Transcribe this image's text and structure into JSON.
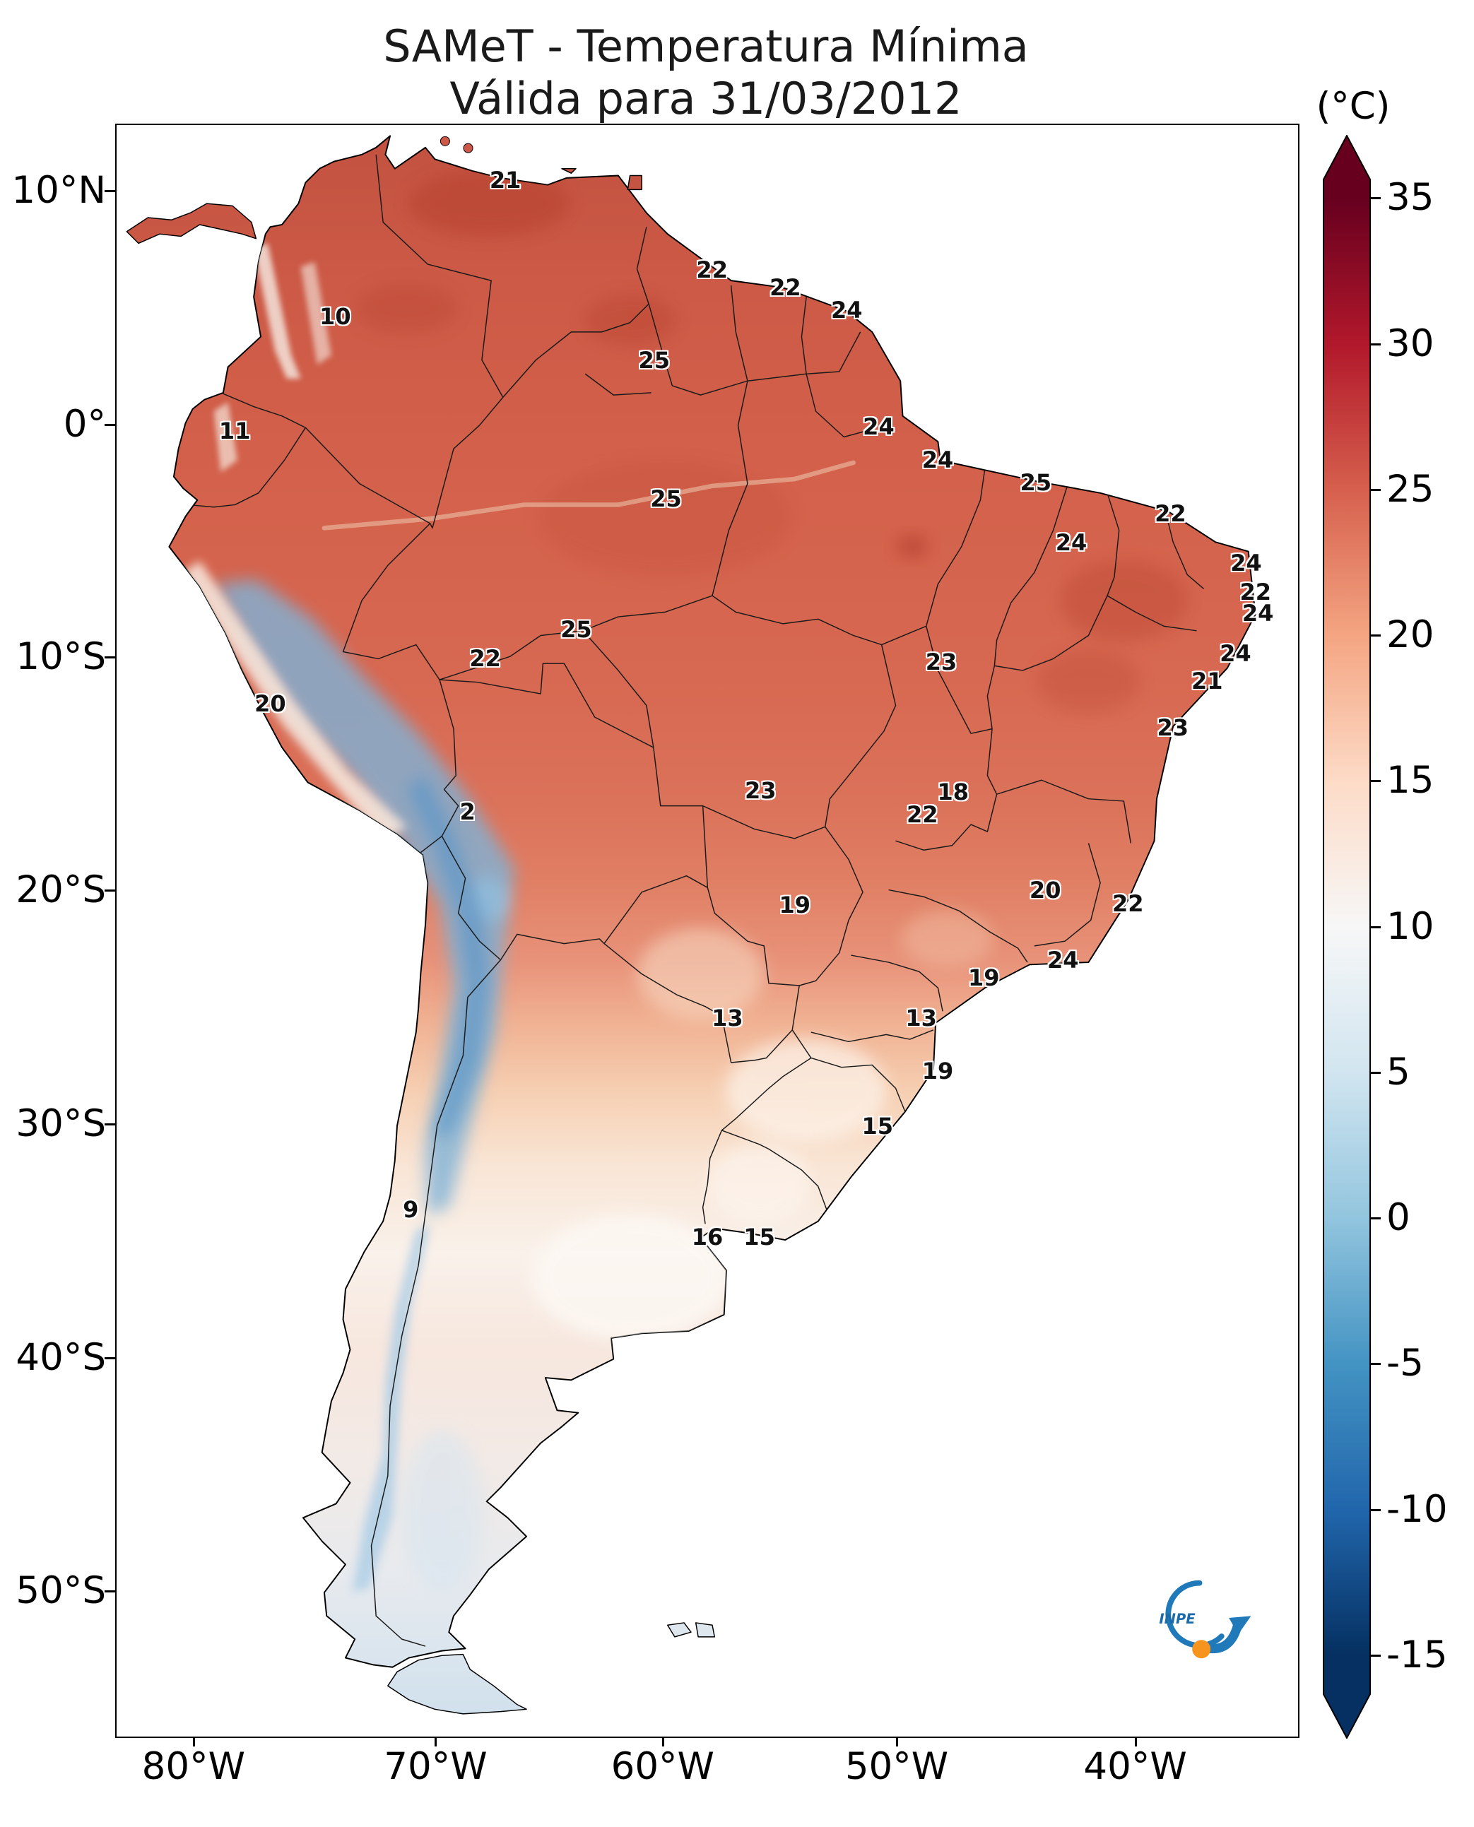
{
  "chart_data": {
    "type": "map",
    "title": "SAMeT - Temperatura Mínima",
    "subtitle": "Válida para 31/03/2012",
    "region": "South America",
    "colorbar": {
      "unit_label": "(°C)",
      "min": -15,
      "max": 35,
      "extend": "both",
      "ticks": [
        {
          "label": "35",
          "pct": 3.94
        },
        {
          "label": "30",
          "pct": 13.03
        },
        {
          "label": "25",
          "pct": 22.12
        },
        {
          "label": "20",
          "pct": 31.21
        },
        {
          "label": "15",
          "pct": 40.3
        },
        {
          "label": "10",
          "pct": 49.39
        },
        {
          "label": "5",
          "pct": 58.48
        },
        {
          "label": "0",
          "pct": 67.57
        },
        {
          "label": "-5",
          "pct": 76.66
        },
        {
          "label": "-10",
          "pct": 85.75
        },
        {
          "label": "-15",
          "pct": 94.84
        }
      ],
      "stops": [
        {
          "pct": 0,
          "color": "#67001f"
        },
        {
          "pct": 3.94,
          "color": "#67001f"
        },
        {
          "pct": 13.03,
          "color": "#b2182b"
        },
        {
          "pct": 22.12,
          "color": "#d6604d"
        },
        {
          "pct": 31.21,
          "color": "#f4a582"
        },
        {
          "pct": 40.3,
          "color": "#fddbc7"
        },
        {
          "pct": 49.39,
          "color": "#f7f7f7"
        },
        {
          "pct": 58.48,
          "color": "#d1e5f0"
        },
        {
          "pct": 67.57,
          "color": "#92c5de"
        },
        {
          "pct": 76.66,
          "color": "#4393c3"
        },
        {
          "pct": 85.75,
          "color": "#2166ac"
        },
        {
          "pct": 94.84,
          "color": "#053061"
        },
        {
          "pct": 100,
          "color": "#053061"
        }
      ]
    },
    "axes": {
      "lat": [
        {
          "label": "10°N",
          "pct": 4.15
        },
        {
          "label": "0°",
          "pct": 18.67
        },
        {
          "label": "10°S",
          "pct": 33.12
        },
        {
          "label": "20°S",
          "pct": 47.57
        },
        {
          "label": "30°S",
          "pct": 62.09
        },
        {
          "label": "40°S",
          "pct": 76.61
        },
        {
          "label": "50°S",
          "pct": 91.06
        }
      ],
      "lon": [
        {
          "label": "80°W",
          "pct": 6.63
        },
        {
          "label": "70°W",
          "pct": 27.12
        },
        {
          "label": "60°W",
          "pct": 46.34
        },
        {
          "label": "50°W",
          "pct": 66.15
        },
        {
          "label": "40°W",
          "pct": 86.34
        }
      ]
    },
    "temperature_labels": [
      {
        "value": "21",
        "x": 32.9,
        "y": 3.4
      },
      {
        "value": "22",
        "x": 50.4,
        "y": 9.0
      },
      {
        "value": "22",
        "x": 56.6,
        "y": 10.1
      },
      {
        "value": "24",
        "x": 61.8,
        "y": 11.5
      },
      {
        "value": "10",
        "x": 18.5,
        "y": 11.9
      },
      {
        "value": "25",
        "x": 45.5,
        "y": 14.6
      },
      {
        "value": "11",
        "x": 10.0,
        "y": 19.0
      },
      {
        "value": "24",
        "x": 64.5,
        "y": 18.7
      },
      {
        "value": "24",
        "x": 69.5,
        "y": 20.8
      },
      {
        "value": "25",
        "x": 77.8,
        "y": 22.2
      },
      {
        "value": "25",
        "x": 46.5,
        "y": 23.2
      },
      {
        "value": "22",
        "x": 89.2,
        "y": 24.1
      },
      {
        "value": "24",
        "x": 80.8,
        "y": 25.9
      },
      {
        "value": "24",
        "x": 95.6,
        "y": 27.2
      },
      {
        "value": "22",
        "x": 96.4,
        "y": 29.0
      },
      {
        "value": "24",
        "x": 96.6,
        "y": 30.3
      },
      {
        "value": "25",
        "x": 38.9,
        "y": 31.3
      },
      {
        "value": "22",
        "x": 31.2,
        "y": 33.1
      },
      {
        "value": "23",
        "x": 69.8,
        "y": 33.3
      },
      {
        "value": "24",
        "x": 94.7,
        "y": 32.8
      },
      {
        "value": "21",
        "x": 92.3,
        "y": 34.5
      },
      {
        "value": "20",
        "x": 13.0,
        "y": 35.9
      },
      {
        "value": "23",
        "x": 89.4,
        "y": 37.4
      },
      {
        "value": "23",
        "x": 54.5,
        "y": 41.3
      },
      {
        "value": "18",
        "x": 70.8,
        "y": 41.4
      },
      {
        "value": "22",
        "x": 68.2,
        "y": 42.8
      },
      {
        "value": "2",
        "x": 29.7,
        "y": 42.6
      },
      {
        "value": "19",
        "x": 57.4,
        "y": 48.4
      },
      {
        "value": "20",
        "x": 78.6,
        "y": 47.5
      },
      {
        "value": "22",
        "x": 85.6,
        "y": 48.3
      },
      {
        "value": "24",
        "x": 80.1,
        "y": 51.8
      },
      {
        "value": "19",
        "x": 73.4,
        "y": 52.9
      },
      {
        "value": "13",
        "x": 51.7,
        "y": 55.4
      },
      {
        "value": "13",
        "x": 68.1,
        "y": 55.4
      },
      {
        "value": "19",
        "x": 69.5,
        "y": 58.7
      },
      {
        "value": "15",
        "x": 64.4,
        "y": 62.1
      },
      {
        "value": "9",
        "x": 24.9,
        "y": 67.3
      },
      {
        "value": "16",
        "x": 50.0,
        "y": 69.0
      },
      {
        "value": "15",
        "x": 54.4,
        "y": 69.0
      }
    ]
  },
  "logo": {
    "text": "INPE"
  }
}
